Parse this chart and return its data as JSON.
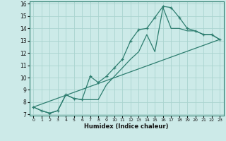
{
  "xlabel": "Humidex (Indice chaleur)",
  "ylabel": "",
  "xlim": [
    -0.5,
    23.5
  ],
  "ylim": [
    6.9,
    16.2
  ],
  "yticks": [
    7,
    8,
    9,
    10,
    11,
    12,
    13,
    14,
    15,
    16
  ],
  "xticks": [
    0,
    1,
    2,
    3,
    4,
    5,
    6,
    7,
    8,
    9,
    10,
    11,
    12,
    13,
    14,
    15,
    16,
    17,
    18,
    19,
    20,
    21,
    22,
    23
  ],
  "bg_color": "#cceae8",
  "line_color": "#2d7d6f",
  "grid_color": "#aad4cf",
  "line1_x": [
    0,
    1,
    2,
    3,
    4,
    5,
    6,
    7,
    8,
    9,
    10,
    11,
    12,
    13,
    14,
    15,
    16,
    17,
    18,
    19,
    20,
    21,
    22,
    23
  ],
  "line1_y": [
    7.6,
    7.3,
    7.1,
    7.3,
    8.6,
    8.3,
    8.2,
    10.1,
    9.6,
    10.1,
    10.8,
    11.5,
    13.0,
    13.9,
    14.0,
    14.9,
    15.8,
    15.7,
    14.9,
    14.0,
    13.8,
    13.5,
    13.5,
    13.1
  ],
  "line2_x": [
    0,
    1,
    2,
    3,
    4,
    5,
    6,
    7,
    8,
    9,
    10,
    11,
    12,
    13,
    14,
    15,
    16,
    17,
    18,
    19,
    20,
    21,
    22,
    23
  ],
  "line2_y": [
    7.6,
    7.3,
    7.1,
    7.3,
    8.6,
    8.3,
    8.2,
    8.2,
    8.2,
    9.4,
    10.1,
    10.8,
    11.5,
    12.1,
    13.5,
    12.1,
    15.7,
    14.0,
    14.0,
    13.8,
    13.8,
    13.5,
    13.5,
    13.1
  ],
  "line3_x": [
    0,
    23
  ],
  "line3_y": [
    7.6,
    13.1
  ]
}
